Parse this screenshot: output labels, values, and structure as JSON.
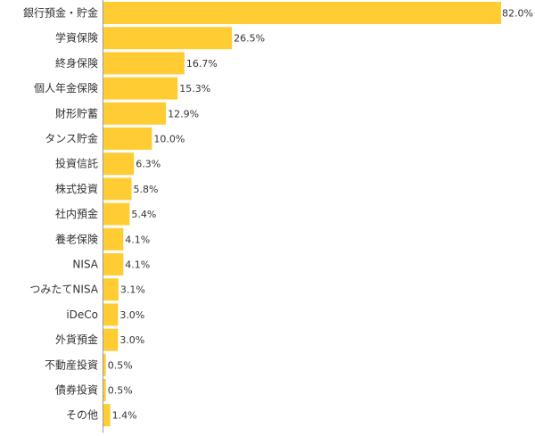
{
  "chart_data": {
    "type": "bar",
    "orientation": "horizontal",
    "categories": [
      "銀行預金・貯金",
      "学資保険",
      "終身保険",
      "個人年金保険",
      "財形貯蓄",
      "タンス貯金",
      "投資信託",
      "株式投資",
      "社内預金",
      "養老保険",
      "NISA",
      "つみたてNISA",
      "iDeCo",
      "外貨預金",
      "不動産投資",
      "債券投資",
      "その他"
    ],
    "values": [
      82.0,
      26.5,
      16.7,
      15.3,
      12.9,
      10.0,
      6.3,
      5.8,
      5.4,
      4.1,
      4.1,
      3.1,
      3.0,
      3.0,
      0.5,
      0.5,
      1.4
    ],
    "value_labels": [
      "82.0%",
      "26.5%",
      "16.7%",
      "15.3%",
      "12.9%",
      "10.0%",
      "6.3%",
      "5.8%",
      "5.4%",
      "4.1%",
      "4.1%",
      "3.1%",
      "3.0%",
      "3.0%",
      "0.5%",
      "0.5%",
      "1.4%"
    ],
    "unit": "%",
    "xlim": [
      0,
      82
    ],
    "grid": false,
    "legend": "none",
    "bar_color": "#FFCC33",
    "axis_color": "#999999"
  }
}
